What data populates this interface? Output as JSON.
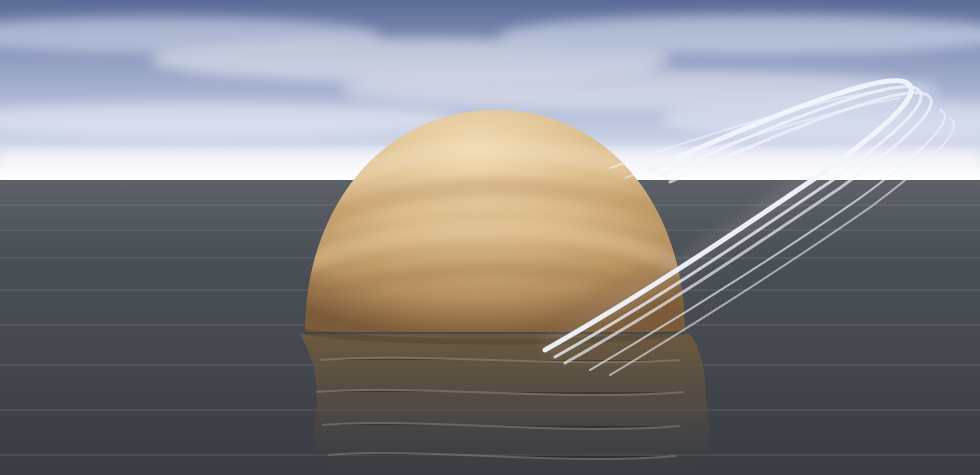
{
  "scene": {
    "subject": "saturn-in-ocean",
    "colors": {
      "sky_top": "#5f6f9a",
      "sky_mid": "#9aa6c6",
      "horizon_glow": "#ffffff",
      "sea_near_horizon": "#5a5e66",
      "sea_far": "#3b3f45",
      "planet_light": "#e6c99b",
      "planet_mid": "#cda777",
      "planet_dark": "#8c6c46",
      "band_dark": "#b28756",
      "ring": "#f2f6ff",
      "reflection": "#6e5a3e"
    }
  }
}
